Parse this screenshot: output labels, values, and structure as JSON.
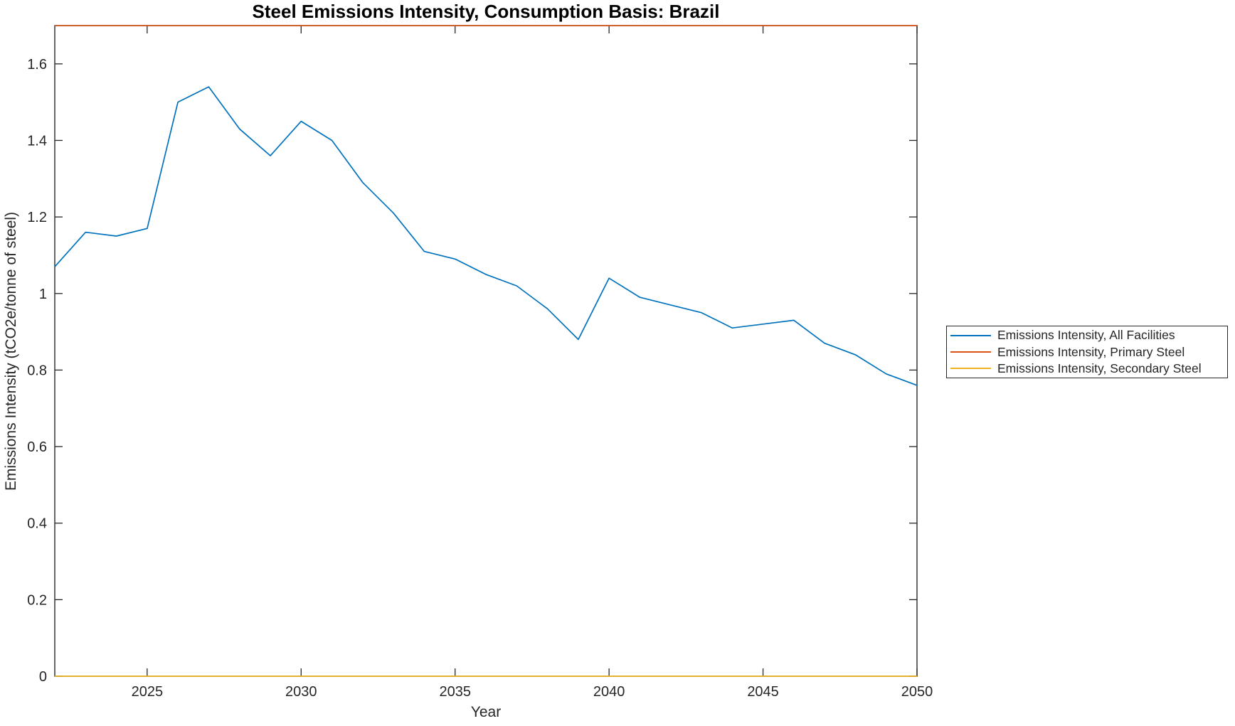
{
  "figure": {
    "title": "Steel Emissions Intensity, Consumption Basis: Brazil",
    "xlabel": "Year",
    "ylabel": "Emissions Intensity (tCO2e/tonne of steel)"
  },
  "chart_data": {
    "type": "line",
    "title": "Steel Emissions Intensity, Consumption Basis: Brazil",
    "xlabel": "Year",
    "ylabel": "Emissions Intensity (tCO2e/tonne of steel)",
    "xlim": [
      2022,
      2050
    ],
    "ylim": [
      0,
      1.7
    ],
    "xticks": [
      2025,
      2030,
      2035,
      2040,
      2045,
      2050
    ],
    "xticklabels": [
      "2025",
      "2030",
      "2035",
      "2040",
      "2045",
      "2050"
    ],
    "yticks": [
      0,
      0.2,
      0.4,
      0.6,
      0.8,
      1,
      1.2,
      1.4,
      1.6
    ],
    "yticklabels": [
      "0",
      "0.2",
      "0.4",
      "0.6",
      "0.8",
      "1",
      "1.2",
      "1.4",
      "1.6"
    ],
    "grid": false,
    "legend_position": "outside-right",
    "axis_color": "#262626",
    "x": [
      2022,
      2023,
      2024,
      2025,
      2026,
      2027,
      2028,
      2029,
      2030,
      2031,
      2032,
      2033,
      2034,
      2035,
      2036,
      2037,
      2038,
      2039,
      2040,
      2041,
      2042,
      2043,
      2044,
      2045,
      2046,
      2047,
      2048,
      2049,
      2050
    ],
    "series": [
      {
        "name": "Emissions Intensity, All Facilities",
        "color": "#0072BD",
        "values": [
          1.07,
          1.16,
          1.15,
          1.17,
          1.5,
          1.54,
          1.43,
          1.36,
          1.45,
          1.4,
          1.29,
          1.21,
          1.11,
          1.09,
          1.05,
          1.02,
          0.96,
          0.88,
          1.04,
          0.99,
          0.97,
          0.95,
          0.91,
          0.92,
          0.93,
          0.87,
          0.84,
          0.79,
          0.76
        ]
      },
      {
        "name": "Emissions Intensity, Primary Steel",
        "color": "#D95319",
        "values": [
          1.7,
          1.7,
          1.7,
          1.7,
          1.7,
          1.7,
          1.7,
          1.7,
          1.7,
          1.7,
          1.7,
          1.7,
          1.7,
          1.7,
          1.7,
          1.7,
          1.7,
          1.7,
          1.7,
          1.7,
          1.7,
          1.7,
          1.7,
          1.7,
          1.7,
          1.7,
          1.7,
          1.7,
          1.7
        ]
      },
      {
        "name": "Emissions Intensity, Secondary Steel",
        "color": "#EDB120",
        "values": [
          0,
          0,
          0,
          0,
          0,
          0,
          0,
          0,
          0,
          0,
          0,
          0,
          0,
          0,
          0,
          0,
          0,
          0,
          0,
          0,
          0,
          0,
          0,
          0,
          0,
          0,
          0,
          0,
          0
        ]
      }
    ]
  }
}
